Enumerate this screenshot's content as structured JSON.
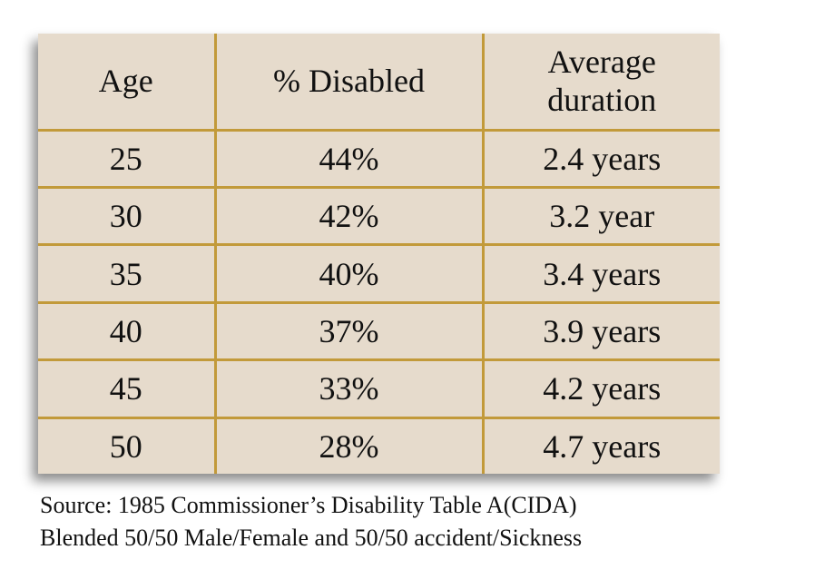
{
  "table": {
    "header": [
      "Age",
      "% Disabled",
      "Average duration"
    ],
    "rows": [
      [
        "25",
        "44%",
        "2.4 years"
      ],
      [
        "30",
        "42%",
        "3.2 year"
      ],
      [
        "35",
        "40%",
        "3.4 years"
      ],
      [
        "40",
        "37%",
        "3.9 years"
      ],
      [
        "45",
        "33%",
        "4.2 years"
      ],
      [
        "50",
        "28%",
        "4.7 years"
      ]
    ]
  },
  "source": [
    "Source: 1985 Commissioner’s Disability Table A(CIDA)",
    "Blended 50/50 Male/Female and 50/50 accident/Sickness"
  ]
}
